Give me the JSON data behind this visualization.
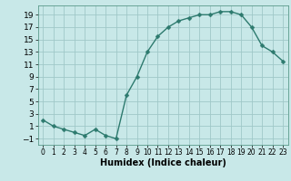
{
  "x": [
    0,
    1,
    2,
    3,
    4,
    5,
    6,
    7,
    8,
    9,
    10,
    11,
    12,
    13,
    14,
    15,
    16,
    17,
    18,
    19,
    20,
    21,
    22,
    23
  ],
  "y": [
    2,
    1,
    0.5,
    0,
    -0.5,
    0.5,
    -0.5,
    -1,
    6,
    9,
    13,
    15.5,
    17,
    18,
    18.5,
    19,
    19,
    19.5,
    19.5,
    19,
    17,
    14,
    13,
    11.5
  ],
  "line_color": "#2d7a6e",
  "marker": "D",
  "marker_size": 2.5,
  "bg_color": "#c8e8e8",
  "grid_color": "#a0c8c8",
  "xlabel": "Humidex (Indice chaleur)",
  "xlim": [
    -0.5,
    23.5
  ],
  "ylim": [
    -2,
    20.5
  ],
  "yticks": [
    -1,
    1,
    3,
    5,
    7,
    9,
    11,
    13,
    15,
    17,
    19
  ],
  "xticks": [
    0,
    1,
    2,
    3,
    4,
    5,
    6,
    7,
    8,
    9,
    10,
    11,
    12,
    13,
    14,
    15,
    16,
    17,
    18,
    19,
    20,
    21,
    22,
    23
  ],
  "xlabel_fontsize": 7,
  "ytick_fontsize": 6.5,
  "xtick_fontsize": 5.5,
  "line_width": 1.0
}
